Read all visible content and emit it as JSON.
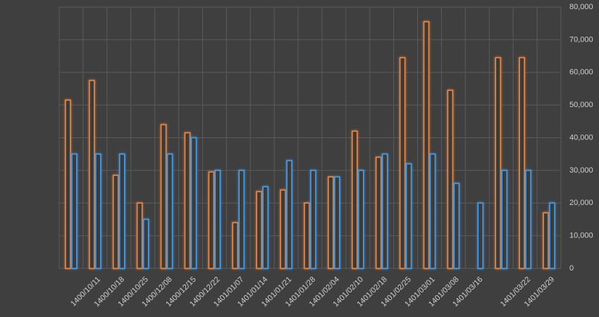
{
  "chart_data": {
    "type": "bar",
    "categories": [
      null,
      "1400/10/11",
      "1400/10/18",
      "1400/10/25",
      "1400/12/08",
      "1400/12/15",
      "1400/12/22",
      "1401/01/07",
      "1401/01/14",
      "1401/01/21",
      "1401/01/28",
      "1401/02/04",
      "1401/02/10",
      "1401/02/18",
      "1401/02/25",
      "1401/03/01",
      "1401/03/08",
      "1401/03/16",
      null,
      "1401/03/22",
      "1401/03/29"
    ],
    "series": [
      {
        "color": "#f0883e",
        "values": [
          51500,
          57500,
          28500,
          20000,
          44000,
          41500,
          29500,
          14000,
          23500,
          24000,
          20000,
          28000,
          42000,
          34000,
          64500,
          75500,
          54500,
          null,
          64500,
          64500,
          17000
        ]
      },
      {
        "color": "#4a9ee8",
        "values": [
          35000,
          35000,
          35000,
          15000,
          35000,
          40000,
          30000,
          30000,
          25000,
          33000,
          30000,
          28000,
          30000,
          35000,
          32000,
          35000,
          26000,
          20000,
          30000,
          30000,
          20000
        ]
      }
    ],
    "ylim": [
      0,
      80000
    ],
    "yticks": [
      0,
      {
        "value": 10000,
        "label": "10,000"
      },
      {
        "value": 20000,
        "label": "20,000"
      },
      {
        "value": 30000,
        "label": "30,000"
      },
      {
        "value": 40000,
        "label": "40,000"
      },
      {
        "value": 50000,
        "label": "50,000"
      },
      {
        "value": 60000,
        "label": "60,000"
      },
      {
        "value": 70000,
        "label": "70,000"
      },
      {
        "value": 80000,
        "label": "80,000"
      }
    ],
    "y_axis_side": "right",
    "grid": true
  }
}
